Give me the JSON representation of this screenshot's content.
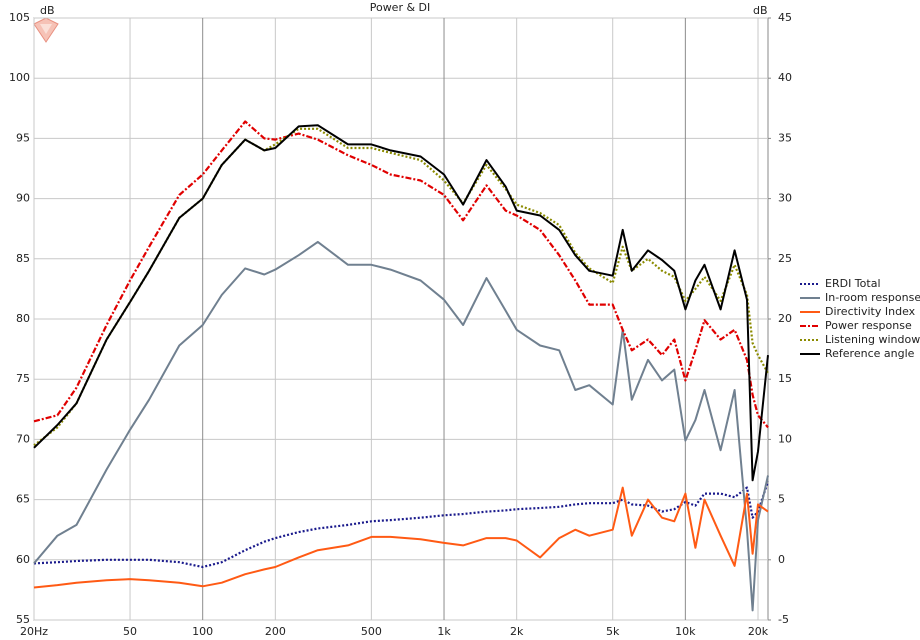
{
  "chart_data": {
    "type": "line",
    "title": "Power & DI",
    "ylabel": "dB",
    "y2label": "dB",
    "xscale": "log",
    "grid": true,
    "legend": "right",
    "xlim": [
      20,
      22000
    ],
    "xticks": [
      {
        "value": 20,
        "label": "20Hz"
      },
      50,
      100,
      200,
      500,
      {
        "value": 1000,
        "label": "1k"
      },
      {
        "value": 2000,
        "label": "2k"
      },
      {
        "value": 5000,
        "label": "5k"
      },
      {
        "value": 10000,
        "label": "10k"
      },
      {
        "value": 20000,
        "label": "20k"
      }
    ],
    "ylim": [
      55,
      105
    ],
    "yticks": [
      55,
      60,
      65,
      70,
      75,
      80,
      85,
      90,
      95,
      100,
      105
    ],
    "y2lim": [
      -5,
      45
    ],
    "y2ticks": [
      -5,
      0,
      5,
      10,
      15,
      20,
      25,
      30,
      35,
      40,
      45
    ],
    "x": [
      20,
      25,
      30,
      40,
      50,
      60,
      80,
      100,
      120,
      150,
      180,
      200,
      250,
      300,
      400,
      500,
      600,
      800,
      1000,
      1200,
      1500,
      1800,
      2000,
      2500,
      3000,
      3500,
      4000,
      5000,
      5500,
      6000,
      7000,
      8000,
      9000,
      10000,
      11000,
      12000,
      14000,
      16000,
      18000,
      19000,
      20000,
      22000
    ],
    "series": [
      {
        "name": "ERDI Total",
        "color": "#1a1a8c",
        "dash": "dotted",
        "axis": "y2",
        "values": [
          -0.3,
          -0.2,
          -0.1,
          0,
          0,
          0,
          -0.2,
          -0.6,
          -0.2,
          0.8,
          1.5,
          1.8,
          2.3,
          2.6,
          2.9,
          3.2,
          3.3,
          3.5,
          3.7,
          3.8,
          4,
          4.1,
          4.2,
          4.3,
          4.4,
          4.6,
          4.7,
          4.7,
          5,
          4.6,
          4.5,
          4,
          4.2,
          4.8,
          4.5,
          5.5,
          5.5,
          5.2,
          6,
          3.5,
          4,
          6.5
        ]
      },
      {
        "name": "In-room response",
        "color": "#708090",
        "dash": "solid",
        "values": [
          59.7,
          62,
          62.9,
          67.5,
          70.8,
          73.3,
          77.8,
          79.5,
          82,
          84.2,
          83.7,
          84.1,
          85.3,
          86.4,
          84.5,
          84.5,
          84.1,
          83.2,
          81.6,
          79.5,
          83.4,
          80.7,
          79.1,
          77.8,
          77.4,
          74.1,
          74.5,
          72.9,
          79.1,
          73.3,
          76.6,
          74.9,
          75.8,
          69.9,
          71.6,
          74.1,
          69.1,
          74.1,
          62.5,
          55.8,
          63.3,
          67
        ]
      },
      {
        "name": "Directivity Index",
        "color": "#ff5a14",
        "dash": "solid",
        "axis": "y2",
        "values": [
          -2.3,
          -2.1,
          -1.9,
          -1.7,
          -1.6,
          -1.7,
          -1.9,
          -2.2,
          -1.9,
          -1.2,
          -0.8,
          -0.6,
          0.2,
          0.8,
          1.2,
          1.9,
          1.9,
          1.7,
          1.4,
          1.2,
          1.8,
          1.8,
          1.6,
          0.2,
          1.8,
          2.5,
          2,
          2.5,
          6,
          2,
          5,
          3.5,
          3.2,
          5.5,
          1,
          5,
          2,
          -0.5,
          5.5,
          0.5,
          4.6,
          4
        ]
      },
      {
        "name": "Power response",
        "color": "#e00000",
        "dash": "dashdot",
        "values": [
          71.5,
          72,
          74.3,
          79.5,
          83.2,
          86,
          90.3,
          92,
          94,
          96.4,
          95,
          94.9,
          95.4,
          94.9,
          93.6,
          92.8,
          92,
          91.5,
          90.3,
          88.2,
          91.1,
          89,
          88.6,
          87.4,
          85.3,
          83.2,
          81.2,
          81.2,
          79.1,
          77.4,
          78.3,
          77,
          78.3,
          74.9,
          77.4,
          79.9,
          78.3,
          79.1,
          76.6,
          73.7,
          72,
          71
        ]
      },
      {
        "name": "Listening window",
        "color": "#8b8b00",
        "dash": "dotted",
        "values": [
          69.5,
          71,
          73,
          78.3,
          81.4,
          84,
          88.4,
          90,
          92.8,
          94.9,
          94,
          94.5,
          95.8,
          95.8,
          94.2,
          94.2,
          93.8,
          93.2,
          91.5,
          89.6,
          92.8,
          90.8,
          89.5,
          88.8,
          87.8,
          85.5,
          84.2,
          83,
          86,
          84,
          85,
          84,
          83.5,
          81.5,
          82.5,
          83.5,
          81.5,
          84.5,
          82,
          78,
          77,
          75.5
        ]
      },
      {
        "name": "Reference angle",
        "color": "#000000",
        "dash": "solid",
        "values": [
          69.3,
          71.2,
          73,
          78.3,
          81.4,
          84,
          88.4,
          90,
          92.8,
          94.9,
          94,
          94.2,
          96,
          96.1,
          94.5,
          94.5,
          94,
          93.5,
          92,
          89.5,
          93.2,
          91,
          89,
          88.6,
          87.4,
          85.3,
          84,
          83.6,
          87.4,
          84,
          85.7,
          84.9,
          84,
          80.8,
          83.2,
          84.5,
          80.8,
          85.7,
          81.6,
          66.6,
          69,
          77
        ]
      }
    ]
  }
}
